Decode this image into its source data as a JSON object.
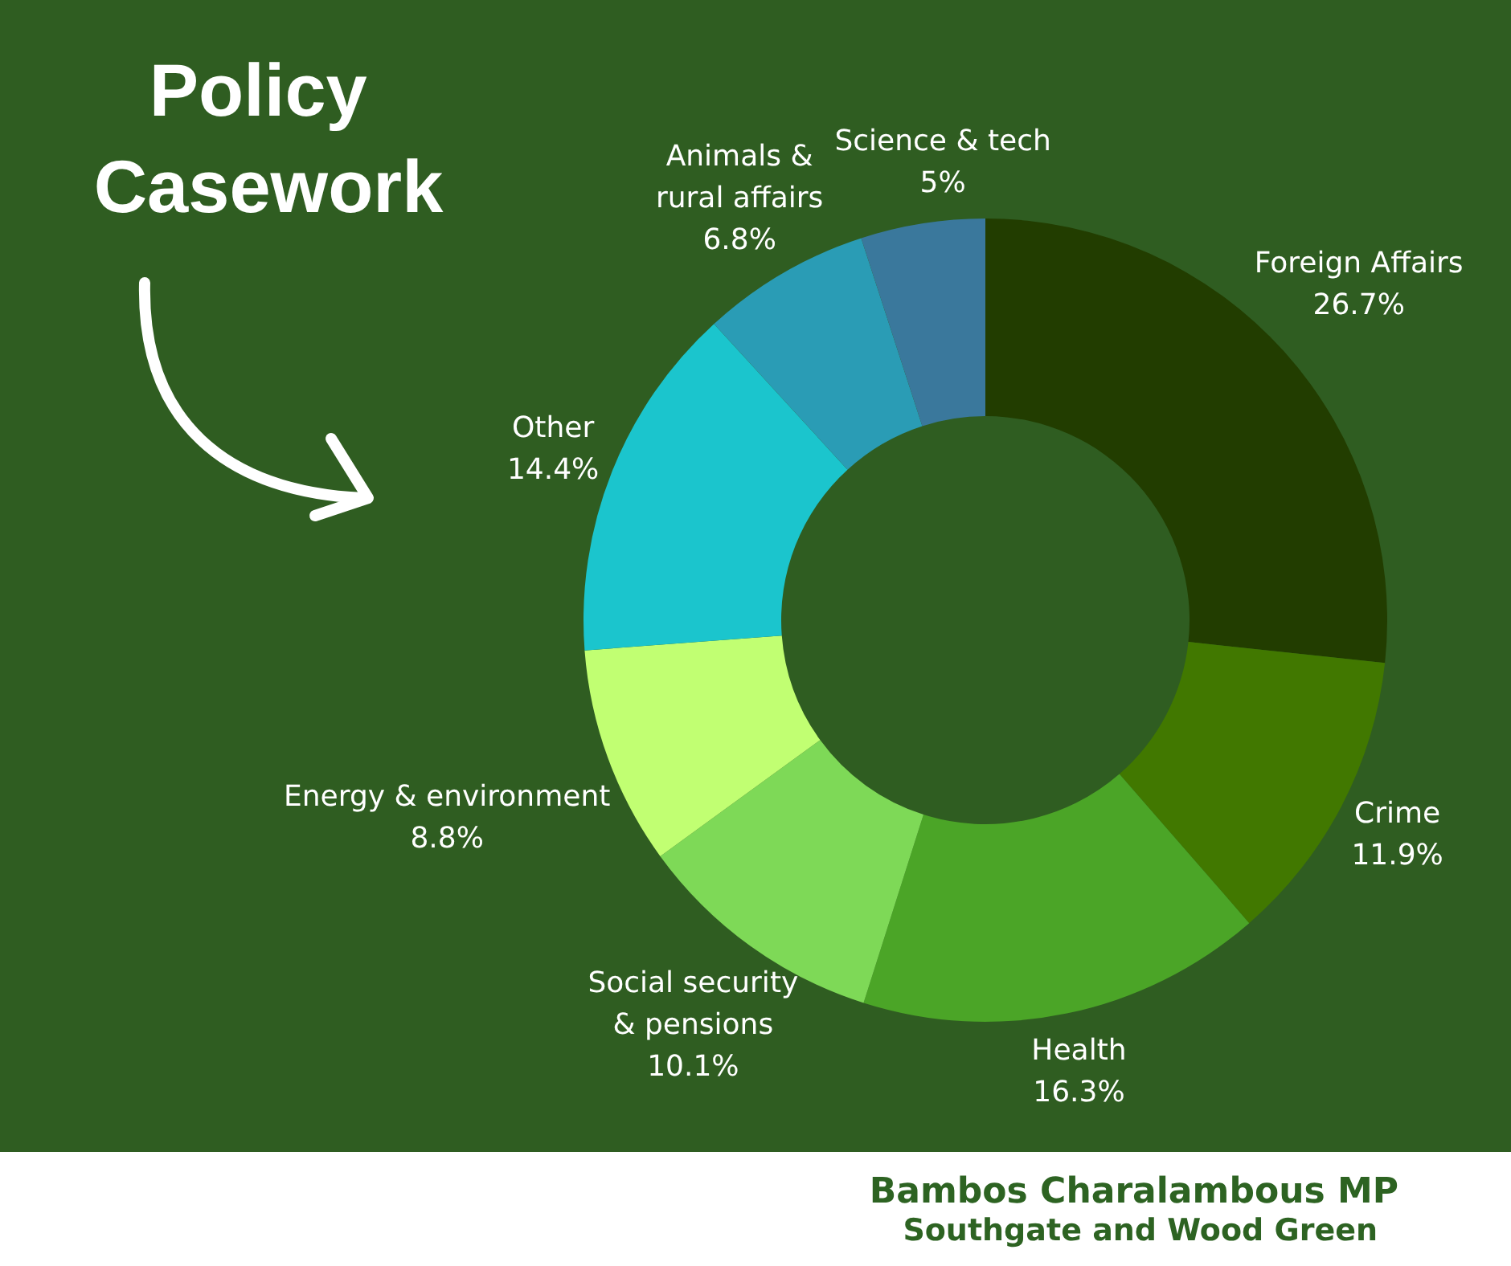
{
  "chart_data": {
    "type": "donut",
    "title": "Policy Casework",
    "categories": [
      "Foreign Affairs",
      "Crime",
      "Health",
      "Social security\n& pensions",
      "Energy & environment",
      "Other",
      "Animals &\nrural affairs",
      "Science & tech"
    ],
    "values": [
      26.7,
      11.9,
      16.3,
      10.1,
      8.8,
      14.4,
      6.8,
      5
    ],
    "value_labels": [
      "26.7%",
      "11.9%",
      "16.3%",
      "10.1%",
      "8.8%",
      "14.4%",
      "6.8%",
      "5%"
    ],
    "colors": [
      "#223d00",
      "#417800",
      "#4ba527",
      "#7ed957",
      "#c1ff72",
      "#1bc5cd",
      "#2a9cb5",
      "#3a789c"
    ],
    "annotations": [
      "Bambos Charalambous MP",
      "Southgate and Wood Green"
    ]
  }
}
